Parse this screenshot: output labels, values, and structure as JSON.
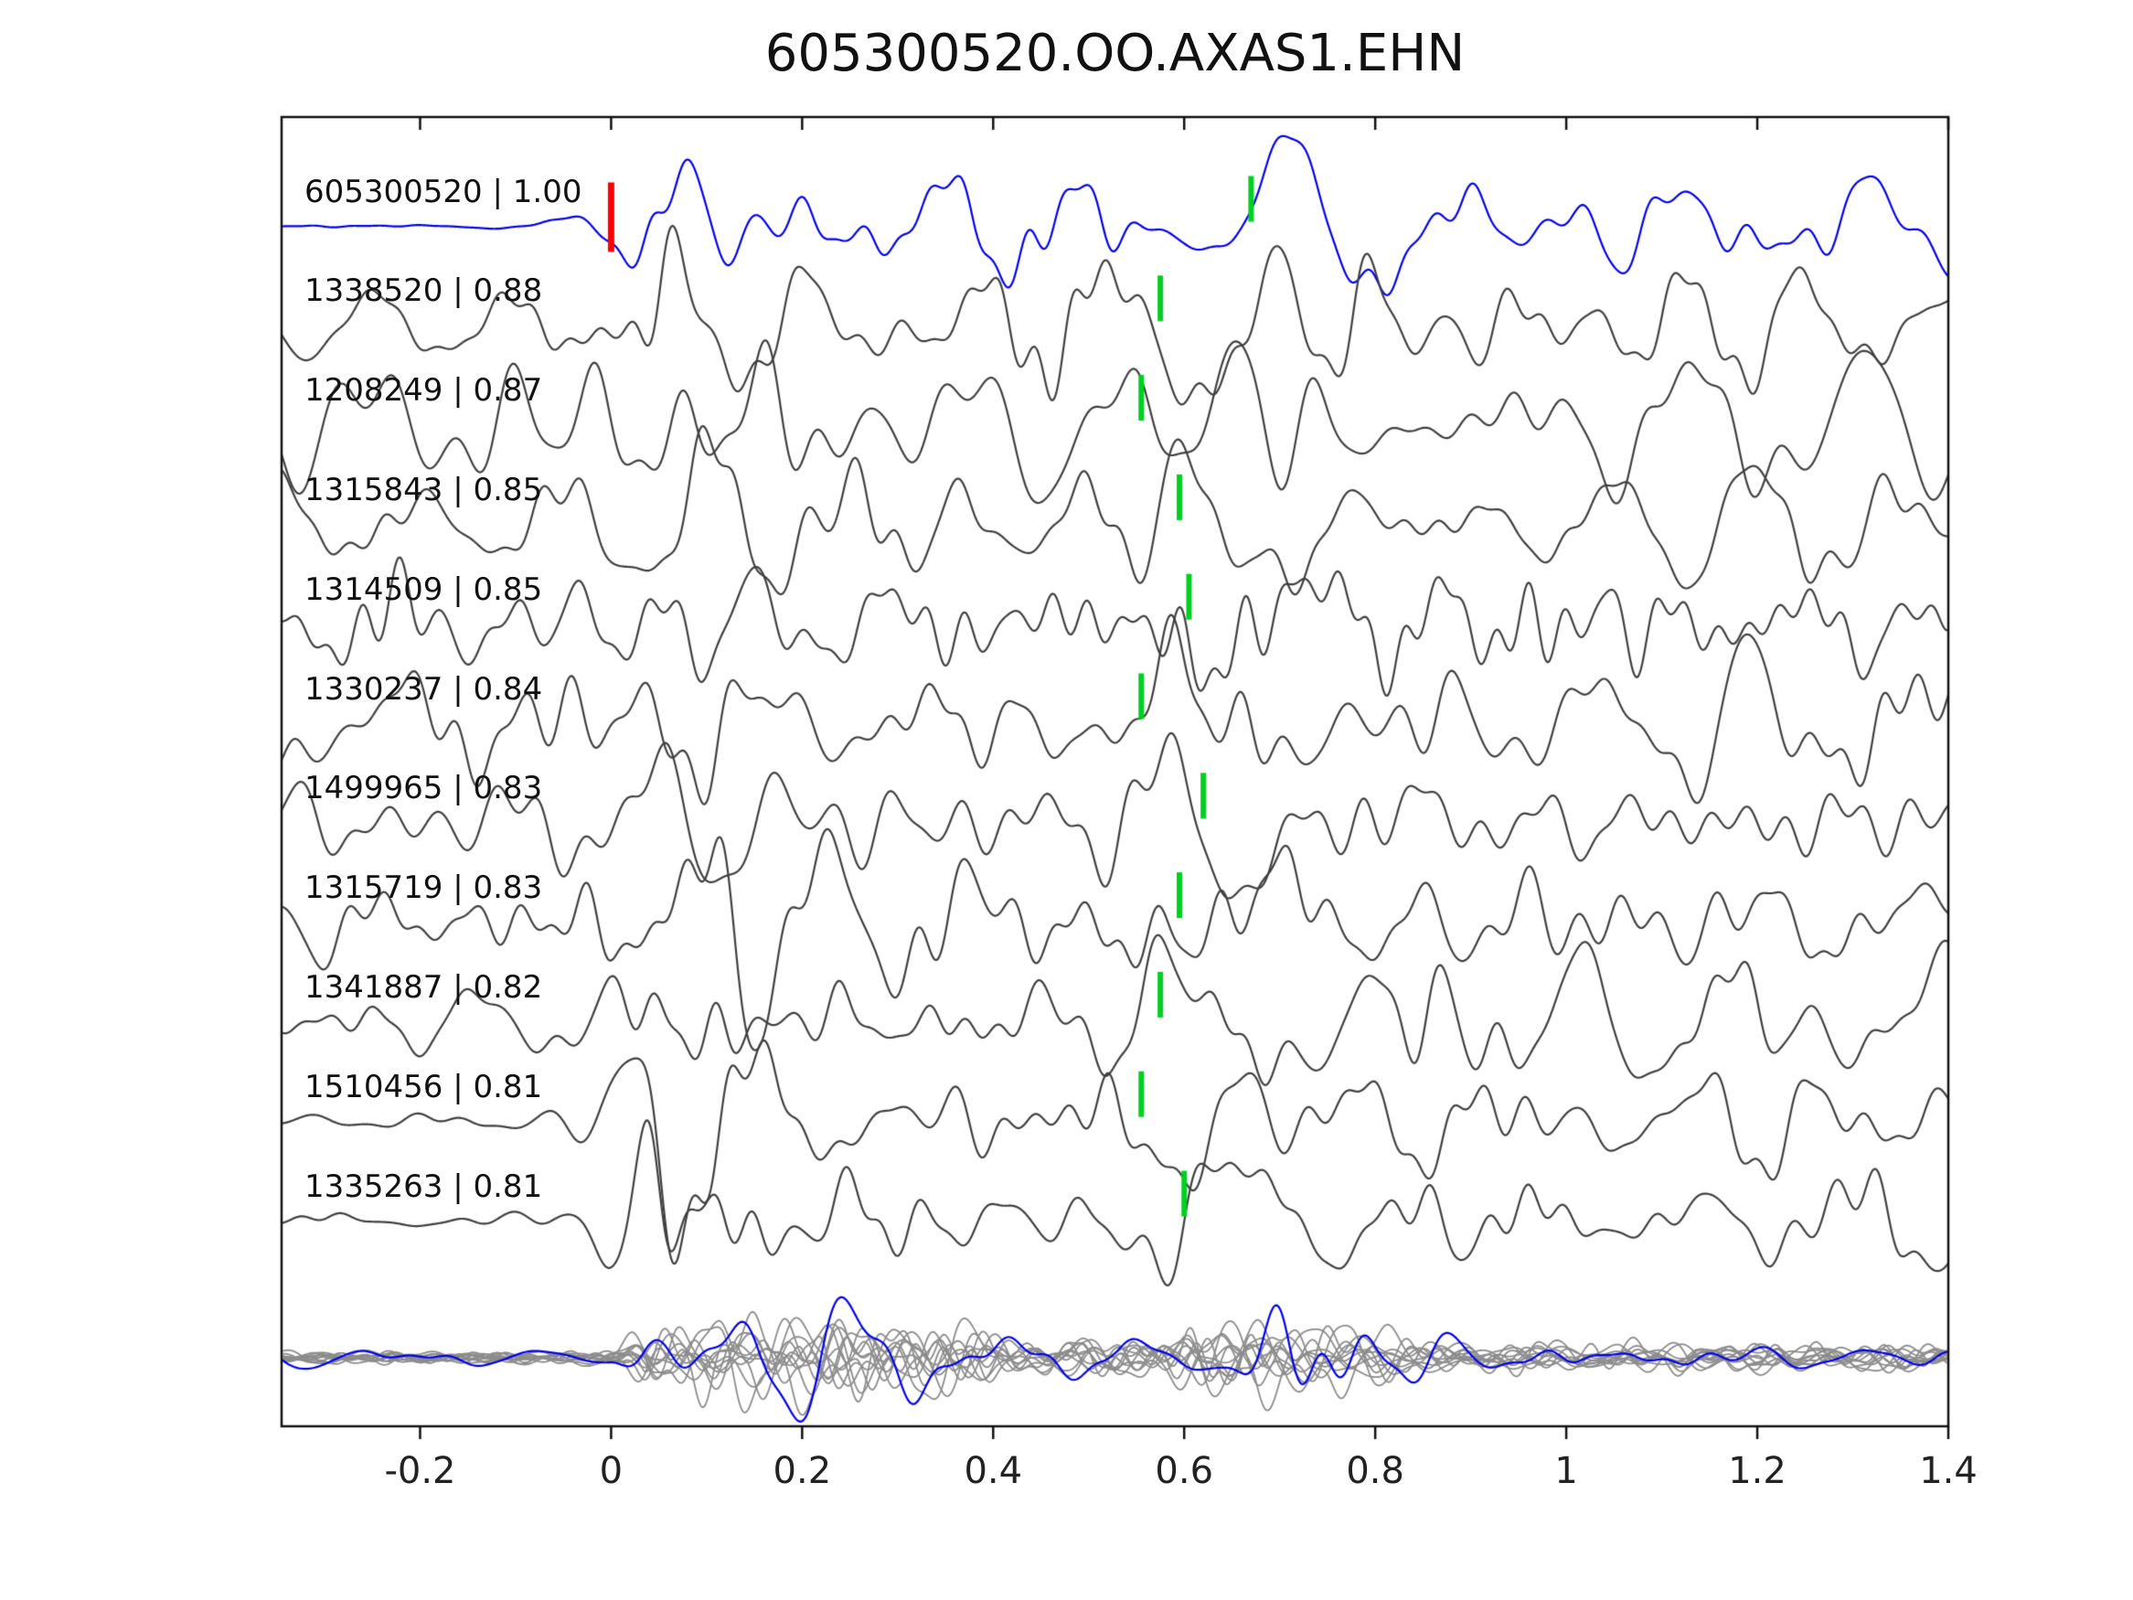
{
  "title": "605300520.OO.AXAS1.EHN",
  "chart_data": {
    "type": "line",
    "title": "605300520.OO.AXAS1.EHN",
    "xlabel": "",
    "ylabel": "",
    "x_range": [
      -0.345,
      1.4
    ],
    "x_tick_values": [
      -0.2,
      0,
      0.2,
      0.4,
      0.6,
      0.8,
      1,
      1.2,
      1.4
    ],
    "x_tick_labels": [
      "-0.2",
      "0",
      "0.2",
      "0.4",
      "0.6",
      "0.8",
      "1",
      "1.2",
      "1.4"
    ],
    "grid": false,
    "legend": false,
    "colors": {
      "template_trace": "#0000ee",
      "match_trace": "#3f3f3f",
      "overlay_trace": "#8c8c8c",
      "pick_marker": "#00d020",
      "origin_marker": "#ff0000",
      "axis": "#111111"
    },
    "traces": [
      {
        "label": "605300520 | 1.00",
        "id": "605300520",
        "correlation": 1.0,
        "pick_time": 0.67,
        "origin_time": 0.0,
        "kind": "template",
        "render": {
          "pre": 0.03,
          "post": 0.55,
          "burst": 0.25,
          "wamp": 1.35,
          "wph": 0.8
        }
      },
      {
        "label": "1338520 | 0.88",
        "id": "1338520",
        "correlation": 0.88,
        "pick_time": 0.575,
        "kind": "match",
        "render": {
          "pre": 0.3,
          "post": 0.85,
          "burst": 0.4,
          "wamp": 1.2
        }
      },
      {
        "label": "1208249 | 0.87",
        "id": "1208249",
        "correlation": 0.87,
        "pick_time": 0.555,
        "kind": "match",
        "render": {
          "pre": 0.85,
          "post": 0.9,
          "burst": 0.25,
          "wamp": 1.25
        }
      },
      {
        "label": "1315843 | 0.85",
        "id": "1315843",
        "correlation": 0.85,
        "pick_time": 0.595,
        "kind": "match",
        "render": {
          "pre": 0.5,
          "post": 0.85,
          "burst": 0.5,
          "wamp": 1.2
        }
      },
      {
        "label": "1314509 | 0.85",
        "id": "1314509",
        "correlation": 0.85,
        "pick_time": 0.605,
        "kind": "match",
        "render": {
          "pre": 0.8,
          "post": 0.85,
          "burst": 0.25,
          "wamp": 1.1
        }
      },
      {
        "label": "1330237 | 0.84",
        "id": "1330237",
        "correlation": 0.84,
        "pick_time": 0.555,
        "kind": "match",
        "render": {
          "pre": 0.7,
          "post": 0.8,
          "burst": 0.35,
          "wamp": 1.3
        }
      },
      {
        "label": "1499965 | 0.83",
        "id": "1499965",
        "correlation": 0.83,
        "pick_time": 0.62,
        "kind": "match",
        "render": {
          "pre": 0.55,
          "post": 0.8,
          "burst": 0.35,
          "wamp": 1.45
        }
      },
      {
        "label": "1315719 | 0.83",
        "id": "1315719",
        "correlation": 0.83,
        "pick_time": 0.595,
        "kind": "match",
        "render": {
          "pre": 0.6,
          "post": 0.85,
          "burst": 0.45,
          "wamp": 1.35
        }
      },
      {
        "label": "1341887 | 0.82",
        "id": "1341887",
        "correlation": 0.82,
        "pick_time": 0.575,
        "kind": "match",
        "render": {
          "pre": 0.45,
          "post": 0.8,
          "burst": 0.5,
          "wamp": 1.2
        }
      },
      {
        "label": "1510456 | 0.81",
        "id": "1510456",
        "correlation": 0.81,
        "pick_time": 0.555,
        "kind": "match",
        "render": {
          "pre": 0.12,
          "post": 0.6,
          "burst": 1.0,
          "wamp": 1.0
        }
      },
      {
        "label": "1335263 | 0.81",
        "id": "1335263",
        "correlation": 0.81,
        "pick_time": 0.6,
        "kind": "match",
        "render": {
          "pre": 0.12,
          "post": 0.7,
          "burst": 0.6,
          "wamp": 1.3
        }
      }
    ],
    "overlay": {
      "description": "all matched waveforms superimposed in gray with template in blue",
      "gray_count": 11,
      "blue_pick_time": 0.67
    }
  }
}
